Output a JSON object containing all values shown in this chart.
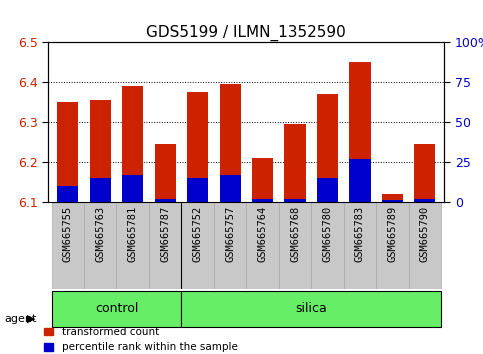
{
  "title": "GDS5199 / ILMN_1352590",
  "samples": [
    "GSM665755",
    "GSM665763",
    "GSM665781",
    "GSM665787",
    "GSM665752",
    "GSM665757",
    "GSM665764",
    "GSM665768",
    "GSM665780",
    "GSM665783",
    "GSM665789",
    "GSM665790"
  ],
  "transformed_counts": [
    6.35,
    6.355,
    6.39,
    6.245,
    6.375,
    6.395,
    6.21,
    6.295,
    6.37,
    6.45,
    6.12,
    6.245
  ],
  "percentile_ranks": [
    10,
    15,
    17,
    2,
    15,
    17,
    2,
    2,
    15,
    27,
    1,
    2
  ],
  "groups": [
    "control",
    "control",
    "control",
    "control",
    "silica",
    "silica",
    "silica",
    "silica",
    "silica",
    "silica",
    "silica",
    "silica"
  ],
  "n_control": 4,
  "ylim_left": [
    6.1,
    6.5
  ],
  "ylim_right": [
    0,
    100
  ],
  "yticks_left": [
    6.1,
    6.2,
    6.3,
    6.4,
    6.5
  ],
  "yticks_right": [
    0,
    25,
    50,
    75,
    100
  ],
  "bar_color": "#cc2200",
  "percentile_color": "#0000cc",
  "bar_width": 0.65,
  "background_color": "#ffffff",
  "xticklabel_bg": "#c8c8c8",
  "group_bar_color": "#66ee66",
  "legend_red_label": "transformed count",
  "legend_blue_label": "percentile rank within the sample",
  "agent_label": "agent",
  "title_fontsize": 11,
  "tick_fontsize": 9,
  "xlabel_fontsize": 7.5
}
